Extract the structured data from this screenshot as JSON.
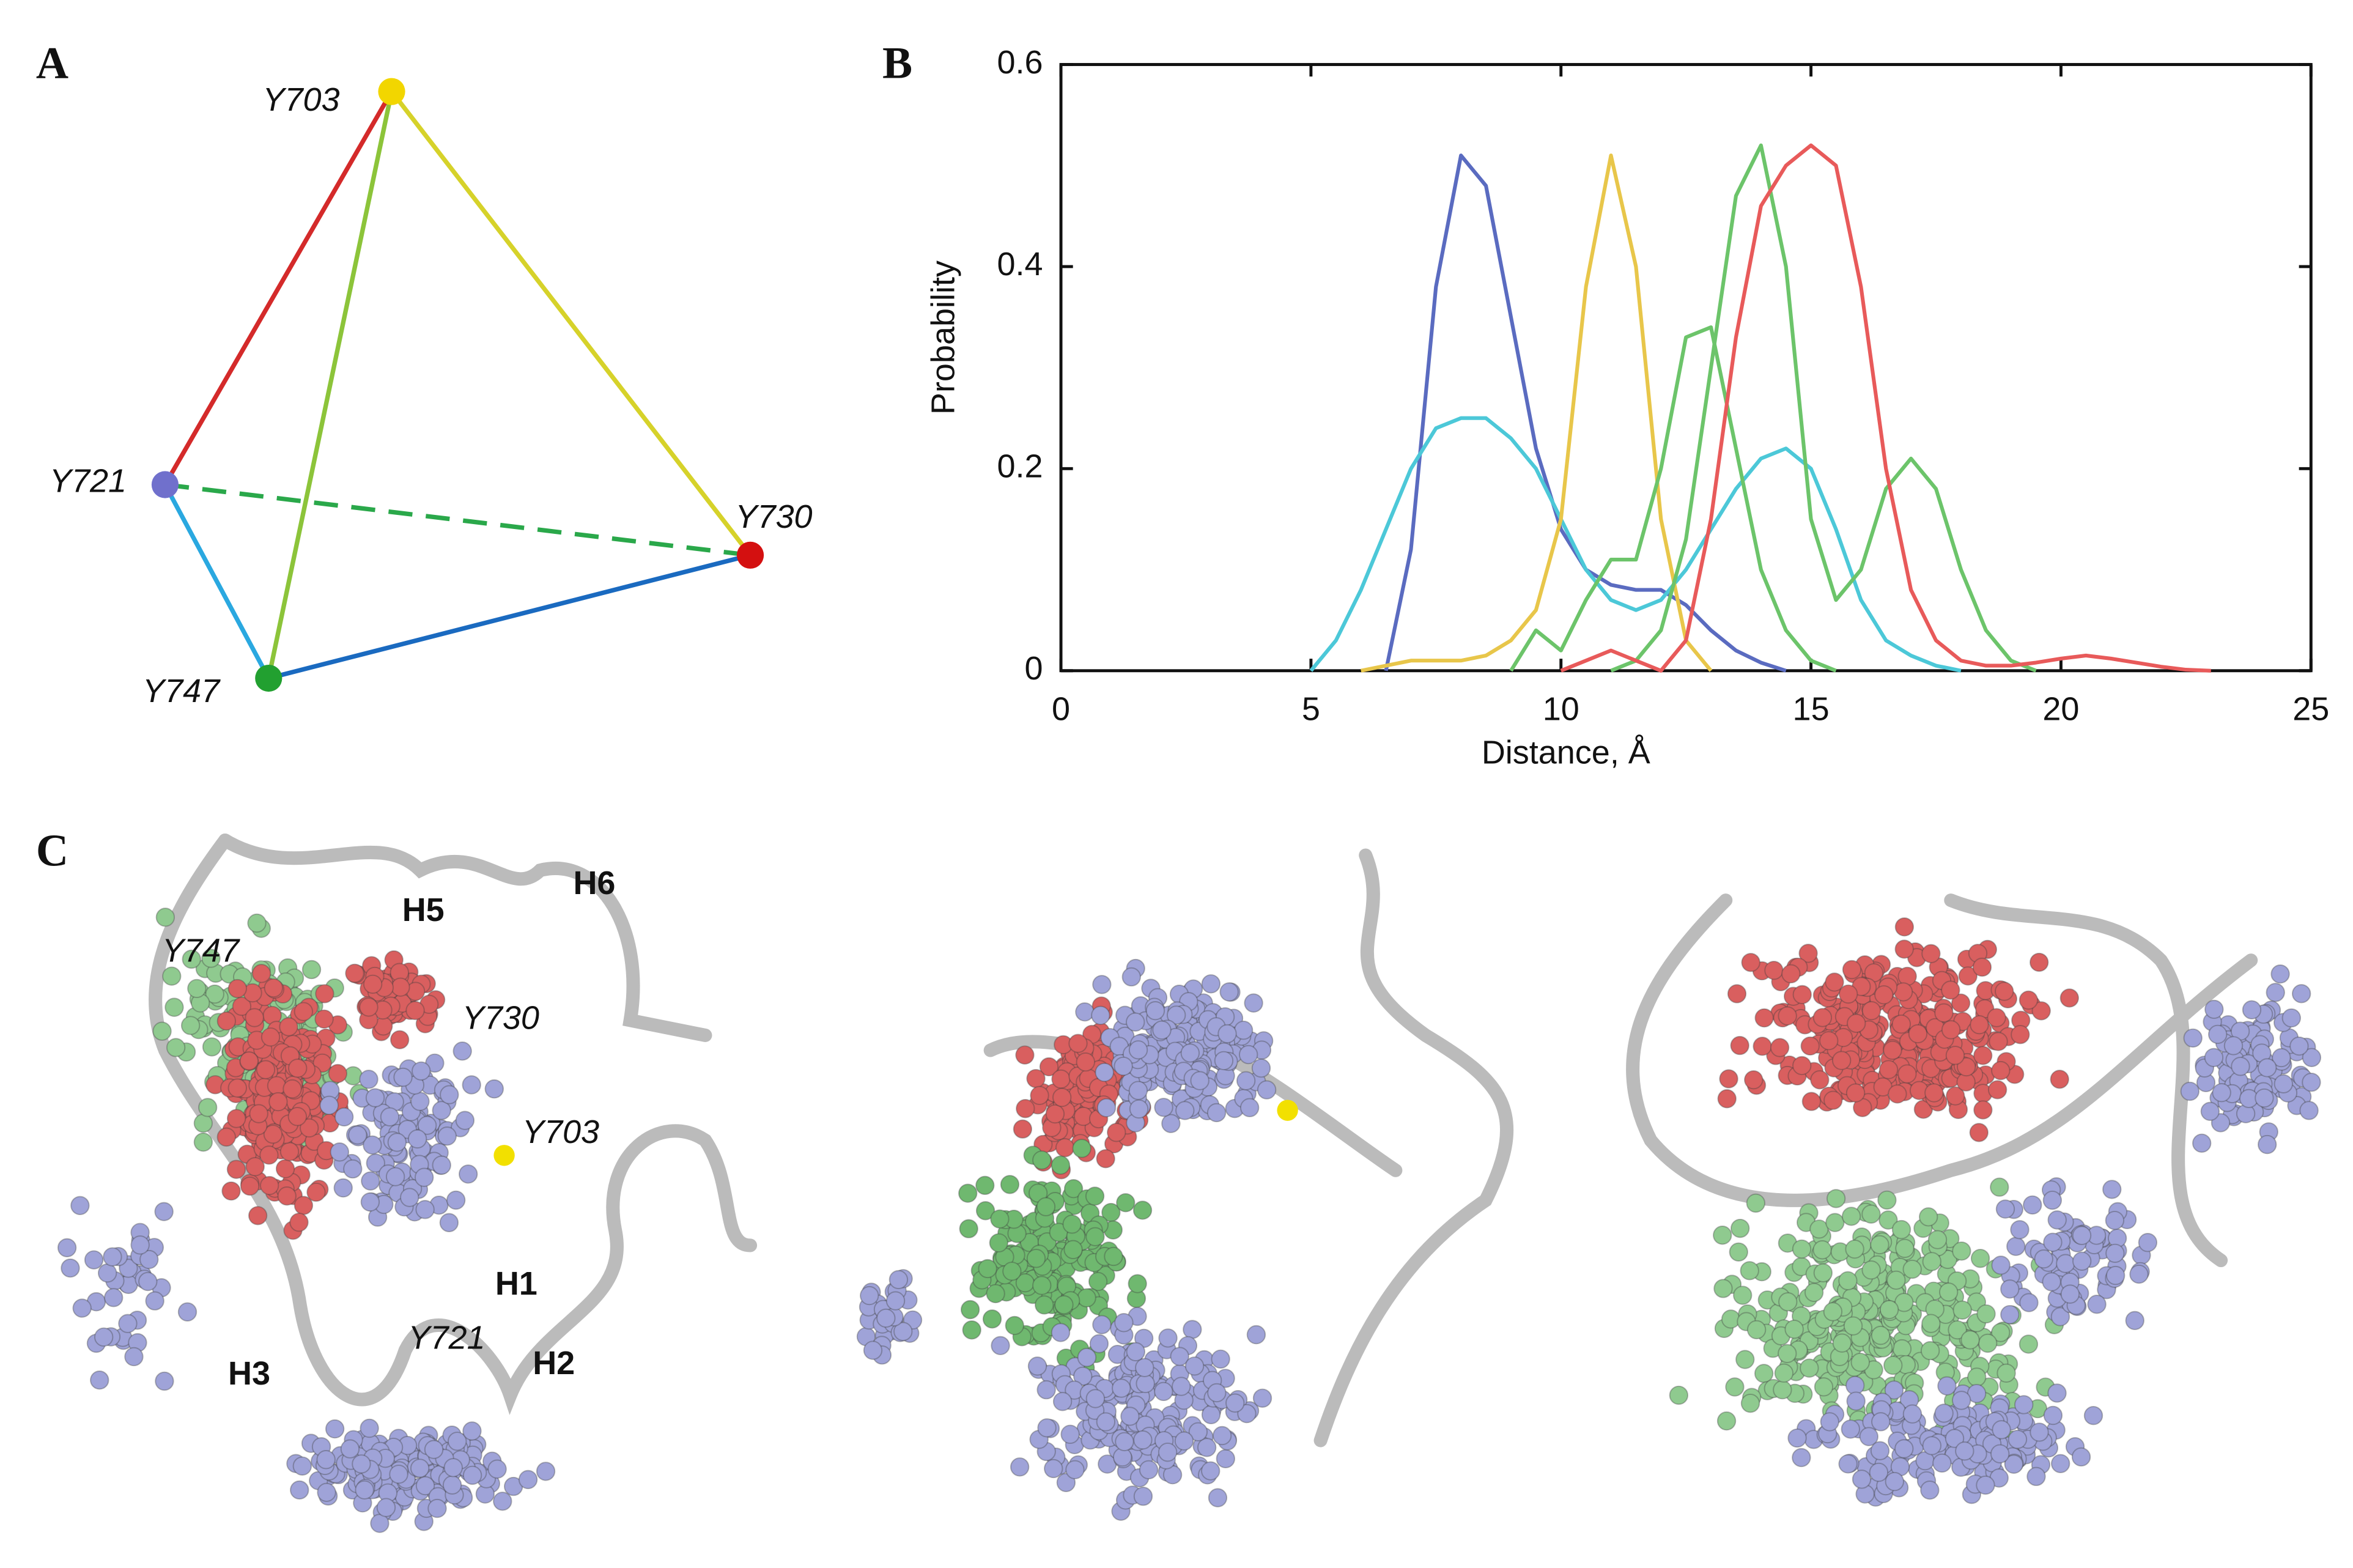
{
  "panels": {
    "a": {
      "letter": "A",
      "nodes": [
        "Y703",
        "Y721",
        "Y730",
        "Y747"
      ]
    },
    "b": {
      "letter": "B"
    },
    "c": {
      "letter": "C",
      "labels": [
        "Y747",
        "H5",
        "H6",
        "Y730",
        "Y703",
        "H1",
        "Y721",
        "H2",
        "H3"
      ]
    }
  },
  "chart_data": {
    "type": "line",
    "xlabel": "Distance, Å",
    "ylabel": "Probability",
    "xlim": [
      0,
      25
    ],
    "ylim": [
      0,
      0.6
    ],
    "xticks": [
      0,
      5,
      10,
      15,
      20,
      25
    ],
    "yticks": [
      0,
      0.2,
      0.4,
      0.6
    ],
    "x": [
      5,
      5.5,
      6,
      6.5,
      7,
      7.5,
      8,
      8.5,
      9,
      9.5,
      10,
      10.5,
      11,
      11.5,
      12,
      12.5,
      13,
      13.5,
      14,
      14.5,
      15,
      15.5,
      16,
      16.5,
      17,
      17.5,
      18,
      18.5,
      19,
      19.5,
      20,
      20.5,
      21,
      21.5,
      22,
      22.5,
      23
    ],
    "series": [
      {
        "color": "#5a6bc0",
        "values": [
          null,
          null,
          null,
          0,
          0.12,
          0.38,
          0.51,
          0.48,
          0.35,
          0.22,
          0.14,
          0.1,
          0.085,
          0.08,
          0.08,
          0.065,
          0.04,
          0.02,
          0.008,
          0,
          null,
          null,
          null,
          null,
          null,
          null,
          null,
          null,
          null,
          null,
          null,
          null,
          null,
          null,
          null,
          null,
          null
        ]
      },
      {
        "color": "#4cc8d8",
        "values": [
          0,
          0.03,
          0.08,
          0.14,
          0.2,
          0.24,
          0.25,
          0.25,
          0.23,
          0.2,
          0.15,
          0.1,
          0.07,
          0.06,
          0.07,
          0.1,
          0.14,
          0.18,
          0.21,
          0.22,
          0.2,
          0.14,
          0.07,
          0.03,
          0.015,
          0.005,
          0,
          null,
          null,
          null,
          null,
          null,
          null,
          null,
          null,
          null,
          null
        ]
      },
      {
        "color": "#e8c64a",
        "values": [
          null,
          null,
          0,
          0.005,
          0.01,
          0.01,
          0.01,
          0.015,
          0.03,
          0.06,
          0.15,
          0.38,
          0.51,
          0.4,
          0.15,
          0.03,
          0,
          null,
          null,
          null,
          null,
          null,
          null,
          null,
          null,
          null,
          null,
          null,
          null,
          null,
          null,
          null,
          null,
          null,
          null,
          null,
          null
        ]
      },
      {
        "color": "#6cc46a",
        "values": [
          null,
          null,
          null,
          null,
          null,
          null,
          null,
          null,
          0,
          0.04,
          0.02,
          0.07,
          0.11,
          0.11,
          0.2,
          0.33,
          0.34,
          0.22,
          0.1,
          0.04,
          0.01,
          0,
          null,
          null,
          null,
          null,
          null,
          null,
          null,
          null,
          null,
          null,
          null,
          null,
          null,
          null,
          null
        ]
      },
      {
        "color": "#6cc46a",
        "values": [
          null,
          null,
          null,
          null,
          null,
          null,
          null,
          null,
          null,
          null,
          null,
          null,
          0,
          0.01,
          0.04,
          0.13,
          0.3,
          0.47,
          0.52,
          0.4,
          0.15,
          0.07,
          0.1,
          0.18,
          0.21,
          0.18,
          0.1,
          0.04,
          0.01,
          0,
          null,
          null,
          null,
          null,
          null,
          null,
          null
        ]
      },
      {
        "color": "#e85a5a",
        "values": [
          null,
          null,
          null,
          null,
          null,
          null,
          null,
          null,
          null,
          null,
          0,
          0.01,
          0.02,
          0.01,
          0,
          0.03,
          0.15,
          0.33,
          0.46,
          0.5,
          0.52,
          0.5,
          0.38,
          0.2,
          0.08,
          0.03,
          0.01,
          0.005,
          0.005,
          0.008,
          0.012,
          0.015,
          0.012,
          0.008,
          0.004,
          0.001,
          0
        ]
      }
    ]
  }
}
